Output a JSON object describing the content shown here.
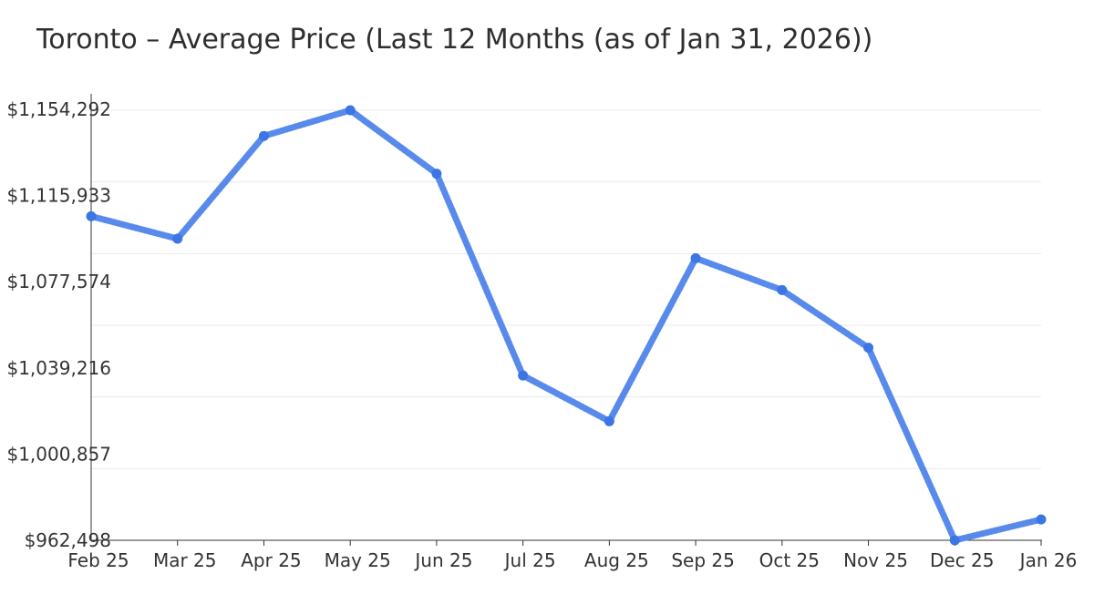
{
  "chart_data": {
    "type": "line",
    "title": "Toronto – Average Price (Last 12 Months (as of Jan 31, 2026))",
    "xlabel": "",
    "ylabel": "",
    "x": [
      "Feb 25",
      "Mar 25",
      "Apr 25",
      "May 25",
      "Jun 25",
      "Jul 25",
      "Aug 25",
      "Sep 25",
      "Oct 25",
      "Nov 25",
      "Dec 25",
      "Jan 26"
    ],
    "series": [
      {
        "name": "Average Price",
        "values": [
          1107000,
          1097000,
          1142800,
          1154292,
          1126000,
          1036000,
          1015600,
          1088300,
          1074100,
          1048400,
          962498,
          971800
        ]
      }
    ],
    "ylim": [
      962498,
      1154292
    ],
    "ytick_labels": [
      "$962,498",
      "$1,000,857",
      "$1,039,216",
      "$1,077,574",
      "$1,115,933",
      "$1,154,292"
    ],
    "grid": "horizontal-only",
    "legend_position": "none",
    "marker": "circle",
    "colors": {
      "line": "#6f9bf2",
      "line_rib": "#3c76e4",
      "point": "#3c76e4",
      "grid": "#e9e9e9",
      "axis": "#333333",
      "tick_text": "#333333",
      "title_text": "#2e2e2e"
    }
  }
}
